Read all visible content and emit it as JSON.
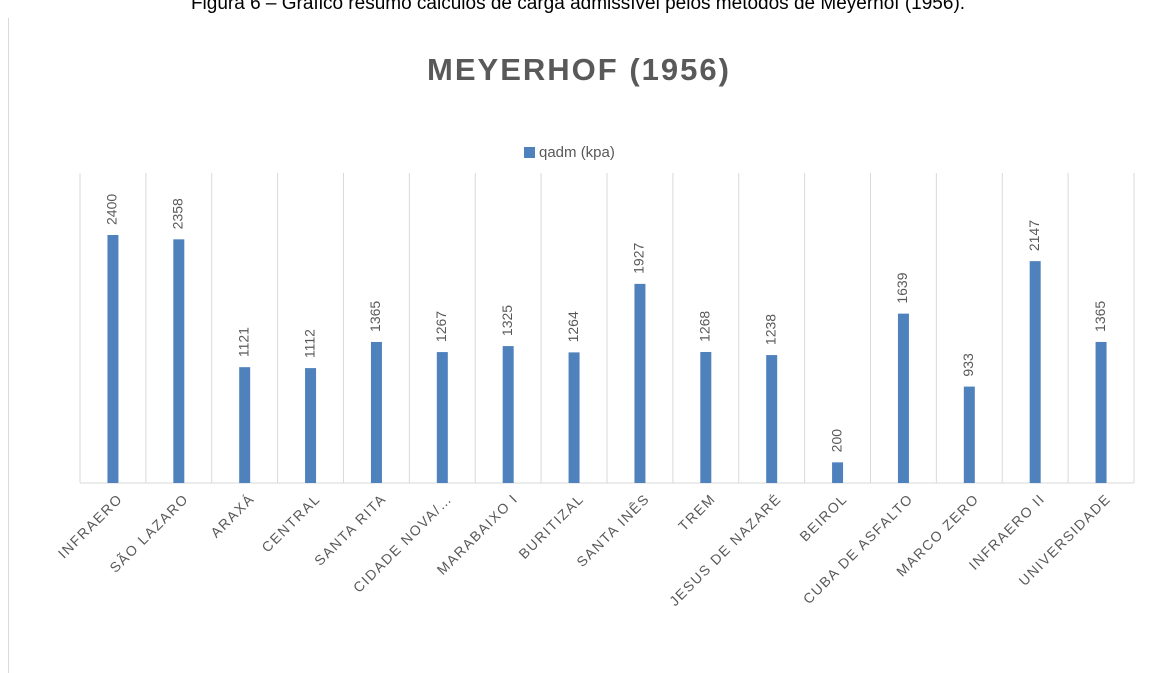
{
  "caption": "Figura 6 – Gráfico resumo cálculos de carga admissível pelos métodos de Meyerhof (1956).",
  "chart_data": {
    "type": "bar",
    "title": "MEYERHOF (1956)",
    "categories": [
      "INFRAERO",
      "SÃO LAZARO",
      "ARAXÁ",
      "CENTRAL",
      "SANTA RITA",
      "CIDADE NOVA/…",
      "MARABAIXO I",
      "BURITIZAL",
      "SANTA INÊS",
      "TREM",
      "JESUS DE NAZARÉ",
      "BEIROL",
      "CUBA DE ASFALTO",
      "MARCO ZERO",
      "INFRAERO II",
      "UNIVERSIDADE"
    ],
    "series": [
      {
        "name": "qadm (kpa)",
        "color": "#4f81bd",
        "values": [
          2400,
          2358,
          1121,
          1112,
          1365,
          1267,
          1325,
          1264,
          1927,
          1268,
          1238,
          200,
          1639,
          933,
          2147,
          1365
        ]
      }
    ],
    "ylim": [
      0,
      3000
    ],
    "grid": true,
    "legend": "top"
  }
}
